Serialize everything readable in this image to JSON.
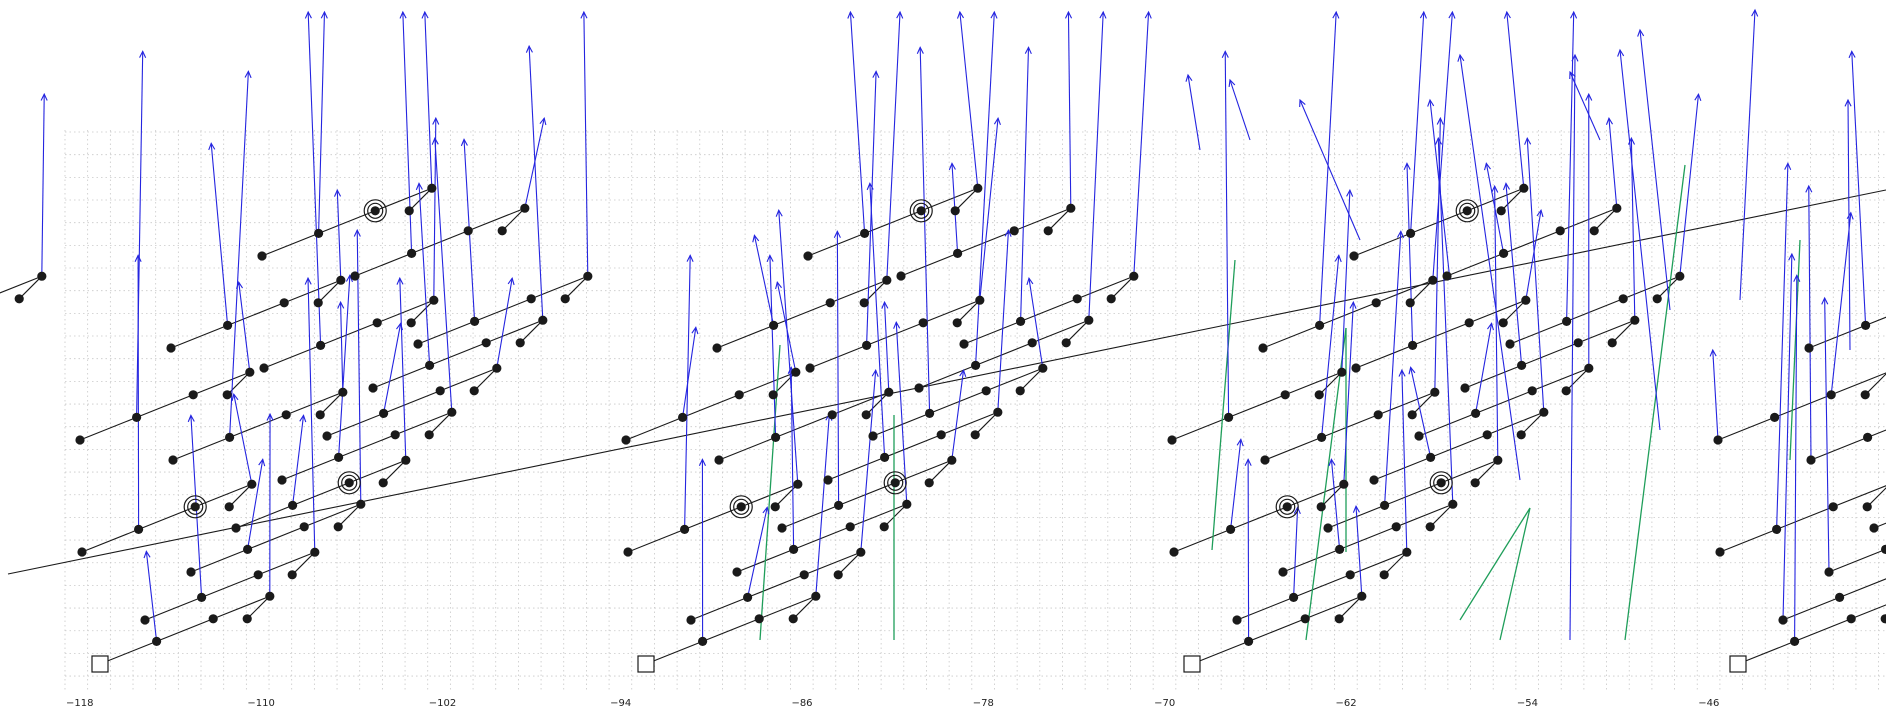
{
  "axis": {
    "ticks": [
      "−118",
      "−110",
      "−102",
      "−94",
      "−86",
      "−78",
      "−70",
      "−62",
      "−54",
      "−46"
    ],
    "tick_values": [
      -118,
      -110,
      -102,
      -94,
      -86,
      -78,
      -70,
      -62,
      -54,
      -46
    ],
    "grid": true
  },
  "colors": {
    "background": "#ffffff",
    "grid": "#c8c8c8",
    "black_edge": "#1a1a1a",
    "blue_edge": "#2424e0",
    "green_edge": "#1f9e5a",
    "node": "#1a1a1a"
  },
  "diagram": {
    "description_type": "lattice-graph",
    "square_markers": 4,
    "ringed_nodes": true
  }
}
